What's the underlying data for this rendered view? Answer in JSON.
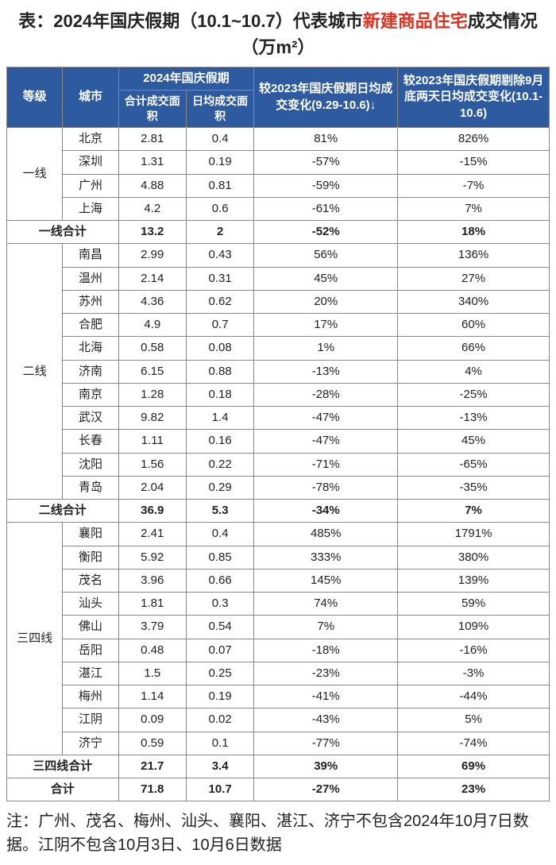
{
  "title_prefix": "表：2024年国庆假期（10.1~10.7）代表城市",
  "title_highlight": "新建商品住宅",
  "title_suffix": "成交情况（万m²）",
  "title_highlight_color": "#e03020",
  "header": {
    "level": "等级",
    "city": "城市",
    "group2024": "2024年国庆假期",
    "total_area": "合计成交面积",
    "daily_area": "日均成交面积",
    "vs2023_daily": "较2023年国庆假期日均成交变化(9.29-10.6)↓",
    "vs2023_excl": "较2023年国庆假期剔除9月底两天日均成交变化(10.1-10.6)"
  },
  "tiers": [
    {
      "name": "一线",
      "rows": [
        {
          "city": "北京",
          "total": "2.81",
          "daily": "0.4",
          "chg1": "81%",
          "chg2": "826%"
        },
        {
          "city": "深圳",
          "total": "1.31",
          "daily": "0.19",
          "chg1": "-57%",
          "chg2": "-15%"
        },
        {
          "city": "广州",
          "total": "4.88",
          "daily": "0.81",
          "chg1": "-59%",
          "chg2": "-7%"
        },
        {
          "city": "上海",
          "total": "4.2",
          "daily": "0.6",
          "chg1": "-61%",
          "chg2": "7%"
        }
      ],
      "subtotal": {
        "label": "一线合计",
        "total": "13.2",
        "daily": "2",
        "chg1": "-52%",
        "chg2": "18%"
      }
    },
    {
      "name": "二线",
      "rows": [
        {
          "city": "南昌",
          "total": "2.99",
          "daily": "0.43",
          "chg1": "56%",
          "chg2": "136%"
        },
        {
          "city": "温州",
          "total": "2.14",
          "daily": "0.31",
          "chg1": "45%",
          "chg2": "27%"
        },
        {
          "city": "苏州",
          "total": "4.36",
          "daily": "0.62",
          "chg1": "20%",
          "chg2": "340%"
        },
        {
          "city": "合肥",
          "total": "4.9",
          "daily": "0.7",
          "chg1": "17%",
          "chg2": "60%"
        },
        {
          "city": "北海",
          "total": "0.58",
          "daily": "0.08",
          "chg1": "1%",
          "chg2": "66%"
        },
        {
          "city": "济南",
          "total": "6.15",
          "daily": "0.88",
          "chg1": "-13%",
          "chg2": "4%"
        },
        {
          "city": "南京",
          "total": "1.28",
          "daily": "0.18",
          "chg1": "-28%",
          "chg2": "-25%"
        },
        {
          "city": "武汉",
          "total": "9.82",
          "daily": "1.4",
          "chg1": "-47%",
          "chg2": "-13%"
        },
        {
          "city": "长春",
          "total": "1.11",
          "daily": "0.16",
          "chg1": "-47%",
          "chg2": "45%"
        },
        {
          "city": "沈阳",
          "total": "1.56",
          "daily": "0.22",
          "chg1": "-71%",
          "chg2": "-65%"
        },
        {
          "city": "青岛",
          "total": "2.04",
          "daily": "0.29",
          "chg1": "-78%",
          "chg2": "-35%"
        }
      ],
      "subtotal": {
        "label": "二线合计",
        "total": "36.9",
        "daily": "5.3",
        "chg1": "-34%",
        "chg2": "7%"
      }
    },
    {
      "name": "三四线",
      "rows": [
        {
          "city": "襄阳",
          "total": "2.41",
          "daily": "0.4",
          "chg1": "485%",
          "chg2": "1791%"
        },
        {
          "city": "衡阳",
          "total": "5.92",
          "daily": "0.85",
          "chg1": "333%",
          "chg2": "380%"
        },
        {
          "city": "茂名",
          "total": "3.96",
          "daily": "0.66",
          "chg1": "145%",
          "chg2": "139%"
        },
        {
          "city": "汕头",
          "total": "1.81",
          "daily": "0.3",
          "chg1": "74%",
          "chg2": "59%"
        },
        {
          "city": "佛山",
          "total": "3.79",
          "daily": "0.54",
          "chg1": "7%",
          "chg2": "109%"
        },
        {
          "city": "岳阳",
          "total": "0.48",
          "daily": "0.07",
          "chg1": "-18%",
          "chg2": "-16%"
        },
        {
          "city": "湛江",
          "total": "1.5",
          "daily": "0.25",
          "chg1": "-23%",
          "chg2": "-3%"
        },
        {
          "city": "梅州",
          "total": "1.14",
          "daily": "0.19",
          "chg1": "-41%",
          "chg2": "-44%"
        },
        {
          "city": "江阴",
          "total": "0.09",
          "daily": "0.02",
          "chg1": "-43%",
          "chg2": "5%"
        },
        {
          "city": "济宁",
          "total": "0.59",
          "daily": "0.1",
          "chg1": "-77%",
          "chg2": "-74%"
        }
      ],
      "subtotal": {
        "label": "三四线合计",
        "total": "21.7",
        "daily": "3.4",
        "chg1": "39%",
        "chg2": "69%"
      }
    }
  ],
  "grandtotal": {
    "label": "合计",
    "total": "71.8",
    "daily": "10.7",
    "chg1": "-27%",
    "chg2": "23%"
  },
  "footnote": "注：广州、茂名、梅州、汕头、襄阳、湛江、济宁不包含2024年10月7日数据。江阴不包含10月3日、10月6日数据",
  "colors": {
    "header_bg": "#2e5aa0",
    "header_fg": "#ffffff",
    "border": "#888888",
    "text": "#222222"
  }
}
